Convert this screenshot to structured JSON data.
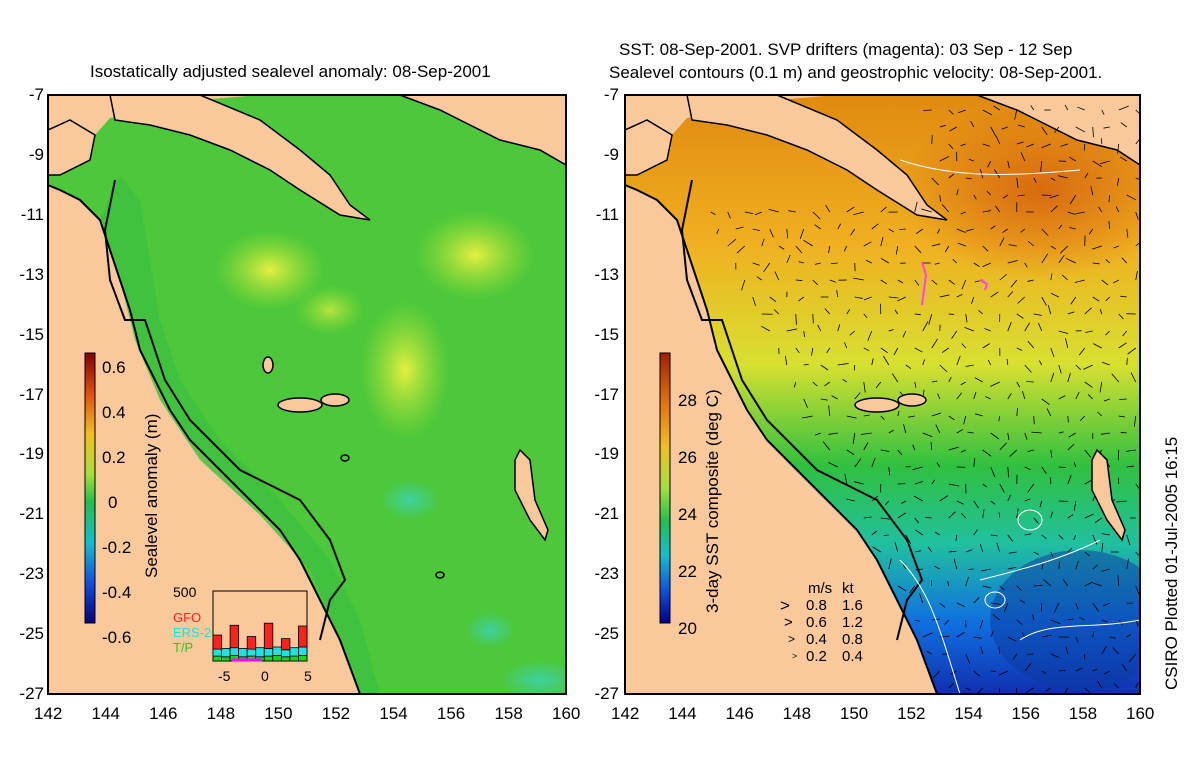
{
  "left_panel": {
    "title": "Isostatically adjusted sealevel anomaly: 08-Sep-2001",
    "colorbar": {
      "label": "Sealevel anomaly (m)",
      "ticks": [
        "0.6",
        "0.4",
        "0.2",
        "0",
        "-0.2",
        "-0.4",
        "-0.6"
      ]
    },
    "inset": {
      "ymax_label": "500",
      "legend": [
        {
          "name": "GFO",
          "color": "#ff2020"
        },
        {
          "name": "ERS-2",
          "color": "#20e0e0"
        },
        {
          "name": "T/P",
          "color": "#20d020"
        }
      ],
      "x_ticks": [
        "-5",
        "0",
        "5"
      ],
      "bars": {
        "x": [
          -5,
          -4,
          -3,
          -2,
          -1,
          0,
          1,
          2,
          3,
          4,
          5
        ],
        "tp": [
          35,
          30,
          40,
          30,
          35,
          30,
          35,
          40,
          30,
          35,
          40
        ],
        "ers2": [
          50,
          60,
          55,
          60,
          50,
          65,
          55,
          60,
          50,
          60,
          60
        ],
        "gfo": [
          100,
          0,
          160,
          0,
          90,
          0,
          180,
          0,
          80,
          0,
          150
        ]
      }
    }
  },
  "right_panel": {
    "title_line1": "SST: 08-Sep-2001. SVP drifters (magenta): 03 Sep - 12 Sep",
    "title_line2": "Sealevel contours (0.1 m) and geostrophic velocity: 08-Sep-2001.",
    "colorbar": {
      "label": "3-day SST composite (deg C)",
      "ticks": [
        "28",
        "26",
        "24",
        "22",
        "20"
      ]
    },
    "velocity_legend": {
      "header_ms": "m/s",
      "header_kt": "kt",
      "rows": [
        {
          "ms": "0.8",
          "kt": "1.6"
        },
        {
          "ms": "0.6",
          "kt": "1.2"
        },
        {
          "ms": "0.4",
          "kt": "0.8"
        },
        {
          "ms": "0.2",
          "kt": "0.4"
        }
      ]
    }
  },
  "axes": {
    "lat_ticks": [
      "-7",
      "-9",
      "-11",
      "-13",
      "-15",
      "-17",
      "-19",
      "-21",
      "-23",
      "-25",
      "-27"
    ],
    "lon_ticks": [
      "142",
      "144",
      "146",
      "148",
      "150",
      "152",
      "154",
      "156",
      "158",
      "160"
    ]
  },
  "footer": {
    "plotted": "CSIRO Plotted 01-Jul-2005 16:15"
  },
  "colors": {
    "land": "#f9c99c",
    "ocean_green": "#2ecc2e",
    "anomaly_high": "#ccee44",
    "sst_warm": "#e07a10",
    "sst_cool": "#1060e0"
  }
}
